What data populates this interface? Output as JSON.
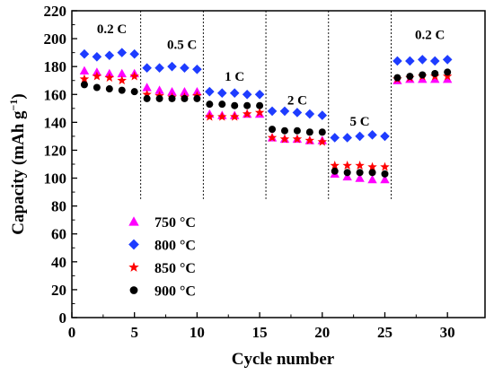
{
  "chart_data": {
    "type": "scatter",
    "title": "",
    "xlabel": "Cycle number",
    "ylabel": "Capacity (mAh g",
    "ylabel_sup": "−1",
    "ylabel_close": ")",
    "xlim": [
      0,
      33
    ],
    "ylim": [
      0,
      220
    ],
    "xticks": [
      "0",
      "5",
      "10",
      "15",
      "20",
      "25",
      "30"
    ],
    "yticks": [
      "0",
      "20",
      "40",
      "60",
      "80",
      "100",
      "120",
      "140",
      "160",
      "180",
      "200",
      "220"
    ],
    "legend_position": "bottom-left",
    "rate_labels": [
      {
        "text": "0.2 C",
        "x": 3.2,
        "y": 207
      },
      {
        "text": "0.5 C",
        "x": 8.8,
        "y": 196
      },
      {
        "text": "1 C",
        "x": 13.0,
        "y": 173
      },
      {
        "text": "2 C",
        "x": 18.0,
        "y": 156
      },
      {
        "text": "5 C",
        "x": 23.0,
        "y": 141
      },
      {
        "text": "0.2 C",
        "x": 28.6,
        "y": 203
      }
    ],
    "dividers": [
      5.5,
      10.5,
      15.5,
      20.5,
      25.5
    ],
    "series": [
      {
        "name": "750 °C",
        "marker": "triangle",
        "color": "#ff00ff",
        "x": [
          1,
          2,
          3,
          4,
          5,
          6,
          7,
          8,
          9,
          10,
          11,
          12,
          13,
          14,
          15,
          16,
          17,
          18,
          19,
          20,
          21,
          22,
          23,
          24,
          25,
          26,
          27,
          28,
          29,
          30
        ],
        "y": [
          177,
          176,
          175,
          175,
          175,
          165,
          163,
          162,
          162,
          162,
          146,
          145,
          145,
          146,
          146,
          129,
          128,
          128,
          127,
          127,
          103,
          101,
          100,
          99,
          99,
          170,
          171,
          171,
          171,
          171
        ]
      },
      {
        "name": "800 °C",
        "marker": "diamond",
        "color": "#1e3cff",
        "x": [
          1,
          2,
          3,
          4,
          5,
          6,
          7,
          8,
          9,
          10,
          11,
          12,
          13,
          14,
          15,
          16,
          17,
          18,
          19,
          20,
          21,
          22,
          23,
          24,
          25,
          26,
          27,
          28,
          29,
          30
        ],
        "y": [
          189,
          187,
          188,
          190,
          189,
          179,
          179,
          180,
          179,
          178,
          162,
          161,
          161,
          160,
          160,
          148,
          148,
          147,
          146,
          145,
          129,
          129,
          130,
          131,
          130,
          184,
          184,
          185,
          184,
          185
        ]
      },
      {
        "name": "850 °C",
        "marker": "star",
        "color": "#ff0000",
        "x": [
          1,
          2,
          3,
          4,
          5,
          6,
          7,
          8,
          9,
          10,
          11,
          12,
          13,
          14,
          15,
          16,
          17,
          18,
          19,
          20,
          21,
          22,
          23,
          24,
          25,
          26,
          27,
          28,
          29,
          30
        ],
        "y": [
          171,
          173,
          172,
          170,
          173,
          160,
          159,
          158,
          158,
          159,
          144,
          144,
          144,
          146,
          147,
          129,
          128,
          128,
          127,
          126,
          109,
          109,
          109,
          108,
          108,
          171,
          172,
          173,
          173,
          173
        ]
      },
      {
        "name": "900 °C",
        "marker": "circle",
        "color": "#000000",
        "x": [
          1,
          2,
          3,
          4,
          5,
          6,
          7,
          8,
          9,
          10,
          11,
          12,
          13,
          14,
          15,
          16,
          17,
          18,
          19,
          20,
          21,
          22,
          23,
          24,
          25,
          26,
          27,
          28,
          29,
          30
        ],
        "y": [
          167,
          165,
          164,
          163,
          162,
          157,
          157,
          157,
          157,
          157,
          153,
          153,
          152,
          152,
          152,
          135,
          134,
          134,
          133,
          133,
          105,
          104,
          104,
          104,
          103,
          172,
          173,
          174,
          175,
          176
        ]
      }
    ]
  }
}
